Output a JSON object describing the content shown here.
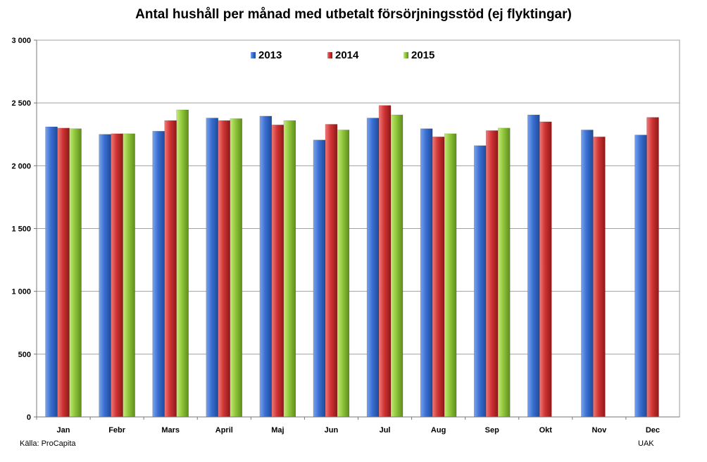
{
  "chart_data": {
    "type": "bar",
    "title": "Antal hushåll per månad med utbetalt försörjningsstöd (ej flyktingar)",
    "categories": [
      "Jan",
      "Febr",
      "Mars",
      "April",
      "Maj",
      "Jun",
      "Jul",
      "Aug",
      "Sep",
      "Okt",
      "Nov",
      "Dec"
    ],
    "series": [
      {
        "name": "2013",
        "color": "#3a6fd1",
        "values": [
          2310,
          2250,
          2275,
          2380,
          2395,
          2205,
          2380,
          2295,
          2160,
          2405,
          2285,
          2245
        ]
      },
      {
        "name": "2014",
        "color": "#d03434",
        "values": [
          2300,
          2255,
          2360,
          2360,
          2325,
          2330,
          2480,
          2230,
          2280,
          2350,
          2230,
          2385
        ]
      },
      {
        "name": "2015",
        "color": "#8fc63a",
        "values": [
          2295,
          2255,
          2445,
          2375,
          2360,
          2285,
          2405,
          2255,
          2300,
          null,
          null,
          null
        ]
      }
    ],
    "ylim": [
      0,
      3000
    ],
    "yticks": [
      0,
      500,
      1000,
      1500,
      2000,
      2500,
      3000
    ],
    "ytick_labels": [
      "0",
      "500",
      "1 000",
      "1 500",
      "2 000",
      "2 500",
      "3 000"
    ],
    "xlabel": "",
    "ylabel": "",
    "grid": true,
    "legend_position": "top-center"
  },
  "footnotes": {
    "source": "Källa: ProCapita",
    "org": "UAK"
  }
}
